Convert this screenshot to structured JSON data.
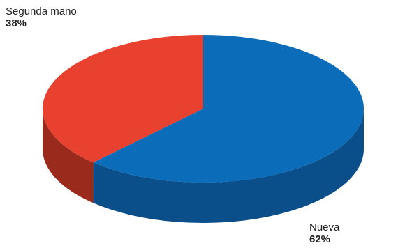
{
  "chart_data": {
    "type": "pie",
    "title": "",
    "labels": [
      "Nueva",
      "Segunda mano"
    ],
    "values": [
      62,
      38
    ],
    "value_labels": [
      "62%",
      "38%"
    ],
    "colors": [
      "#0b6cb9",
      "#e8412f"
    ],
    "side_colors": [
      "#0a4e8a",
      "#9a2a1c"
    ],
    "legend": "none",
    "style": "3d"
  }
}
